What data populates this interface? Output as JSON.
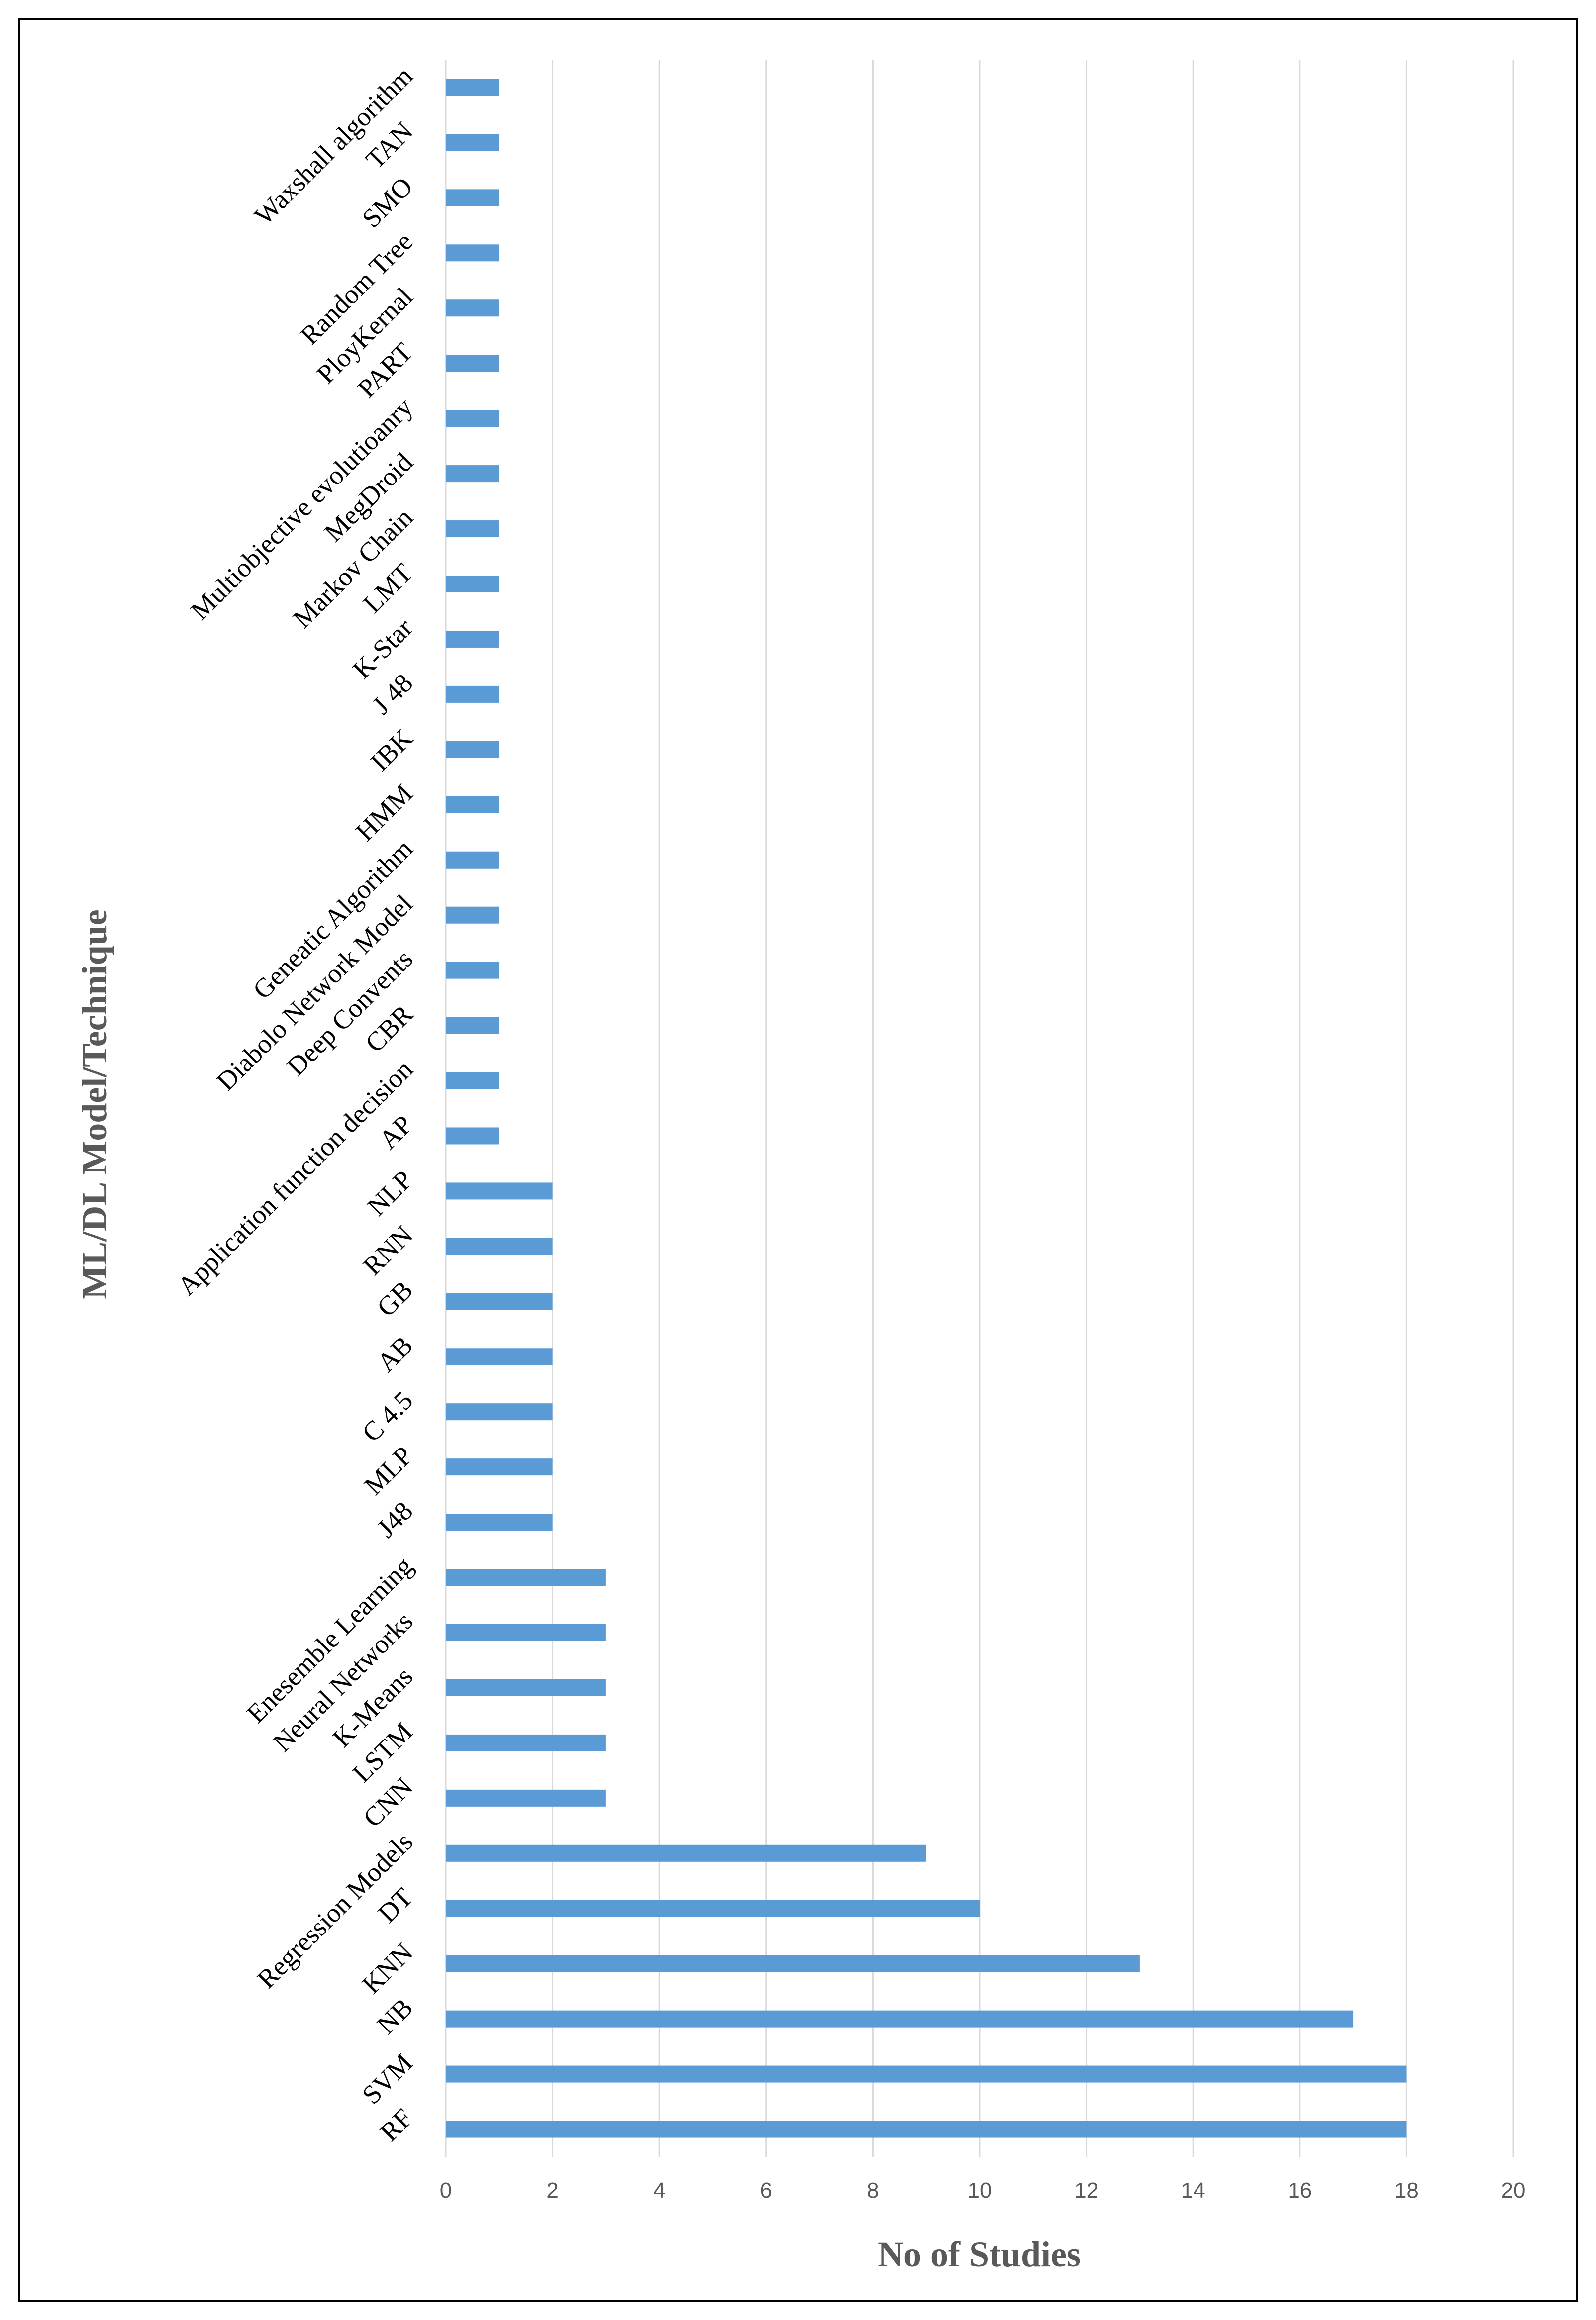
{
  "chart_data": {
    "type": "bar",
    "orientation": "horizontal",
    "xlabel": "No of Studies",
    "ylabel": "ML/DL Model/Technique",
    "xlim": [
      0,
      20
    ],
    "xticks": [
      "0",
      "2",
      "4",
      "6",
      "8",
      "10",
      "12",
      "14",
      "16",
      "18",
      "20"
    ],
    "grid": "vertical",
    "bar_color": "#5B9BD5",
    "grid_color": "#D9D9D9",
    "categories": [
      "RF",
      "SVM",
      "NB",
      "KNN",
      "DT",
      "Regression Models",
      "CNN",
      "LSTM",
      "K-Means",
      "Neural Networks",
      "Enesemble Learning",
      "J48",
      "MLP",
      "C 4.5",
      "AB",
      "GB",
      "RNN",
      "NLP",
      "AP",
      "Application function decision",
      "CBR",
      "Deep Convents",
      "Diabolo Network Model",
      "Geneatic Algorithm",
      "HMM",
      "IBK",
      "J 48",
      "K-Star",
      "LMT",
      "Markov Chain",
      "MegDroid",
      "Multiobjective evolutioanry",
      "PART",
      "PloyKernal",
      "Random Tree",
      "SMO",
      "TAN",
      "Waxshall algorithm"
    ],
    "values": [
      18,
      18,
      17,
      13,
      10,
      9,
      3,
      3,
      3,
      3,
      3,
      2,
      2,
      2,
      2,
      2,
      2,
      2,
      1,
      1,
      1,
      1,
      1,
      1,
      1,
      1,
      1,
      1,
      1,
      1,
      1,
      1,
      1,
      1,
      1,
      1,
      1,
      1
    ]
  }
}
